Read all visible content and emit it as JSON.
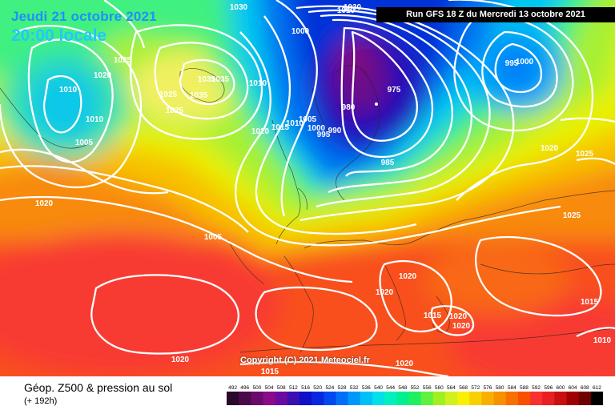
{
  "header": {
    "date_line": "Jeudi 21 octobre 2021",
    "time_line": "20:00 locale",
    "run_label": "Run GFS 18 Z du Mercredi 13 octobre 2021"
  },
  "copyright": "Copyright (C) 2021 Meteociel.fr",
  "footer": {
    "title": "Géop. Z500 & pression au sol",
    "subtitle": "(+ 192h)"
  },
  "legend": {
    "values": [
      "492",
      "496",
      "500",
      "504",
      "508",
      "512",
      "516",
      "520",
      "524",
      "528",
      "532",
      "536",
      "540",
      "544",
      "548",
      "552",
      "556",
      "560",
      "564",
      "568",
      "572",
      "576",
      "580",
      "584",
      "588",
      "592",
      "596",
      "600",
      "604",
      "608",
      "612"
    ],
    "colors": [
      "#2a0a2a",
      "#4a0a4a",
      "#6a0a6a",
      "#8a0a8a",
      "#6a0aa0",
      "#3a10b0",
      "#1010c8",
      "#0828e0",
      "#0048f0",
      "#0070f8",
      "#0098f8",
      "#00c0f8",
      "#00e0e8",
      "#00f0c0",
      "#00f090",
      "#20f060",
      "#60f040",
      "#a0f020",
      "#d0f020",
      "#f8f000",
      "#f8d000",
      "#f8b000",
      "#f89000",
      "#f87000",
      "#f85000",
      "#f83030",
      "#e82020",
      "#c81010",
      "#a00000",
      "#700000",
      "#000000"
    ]
  },
  "isobar_labels": [
    {
      "text": "1030"
    },
    {
      "text": "1030"
    },
    {
      "text": "1010"
    },
    {
      "text": "1000"
    },
    {
      "text": "1025"
    },
    {
      "text": "1020"
    },
    {
      "text": "1010"
    },
    {
      "text": "1035"
    },
    {
      "text": "1010"
    },
    {
      "text": "1035"
    },
    {
      "text": "1025"
    },
    {
      "text": "1035"
    },
    {
      "text": "1025"
    },
    {
      "text": "1010"
    },
    {
      "text": "1020"
    },
    {
      "text": "1015"
    },
    {
      "text": "1010"
    },
    {
      "text": "1005"
    },
    {
      "text": "1000"
    },
    {
      "text": "995"
    },
    {
      "text": "990"
    },
    {
      "text": "980"
    },
    {
      "text": "975"
    },
    {
      "text": "985"
    },
    {
      "text": "995"
    },
    {
      "text": "1000"
    },
    {
      "text": "1020"
    },
    {
      "text": "1025"
    },
    {
      "text": "1005"
    },
    {
      "text": "1020"
    },
    {
      "text": "1005"
    },
    {
      "text": "1025"
    },
    {
      "text": "1020"
    },
    {
      "text": "1020"
    },
    {
      "text": "1020"
    },
    {
      "text": "1020"
    },
    {
      "text": "1015"
    },
    {
      "text": "1015"
    },
    {
      "text": "1020"
    },
    {
      "text": "1020"
    },
    {
      "text": "1015"
    },
    {
      "text": "1010"
    }
  ]
}
